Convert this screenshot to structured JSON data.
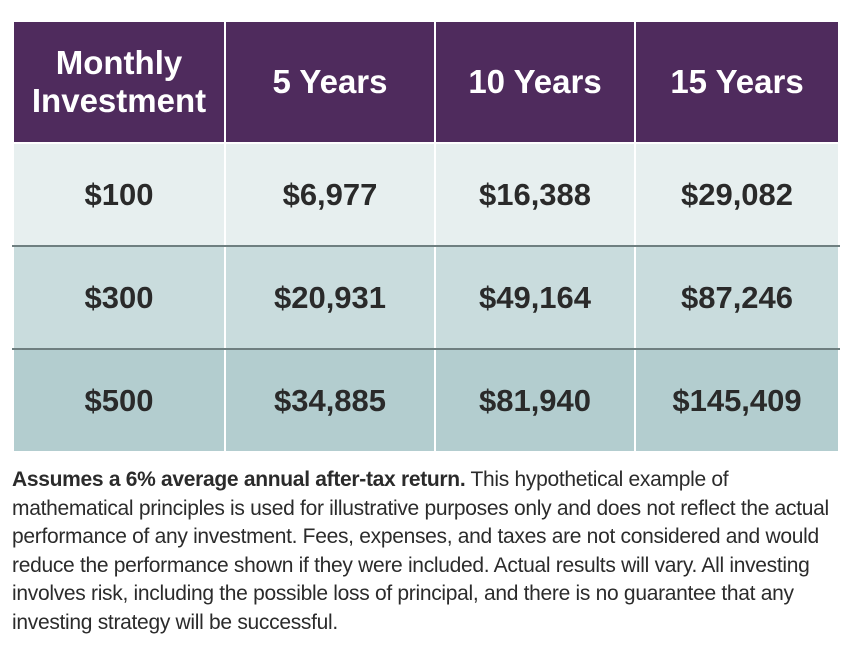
{
  "chart_data": {
    "type": "table",
    "columns": [
      "Monthly Investment",
      "5 Years",
      "10 Years",
      "15 Years"
    ],
    "rows": [
      [
        "$100",
        "$6,977",
        "$16,388",
        "$29,082"
      ],
      [
        "$300",
        "$20,931",
        "$49,164",
        "$87,246"
      ],
      [
        "$500",
        "$34,885",
        "$81,940",
        "$145,409"
      ]
    ]
  },
  "disclaimer": {
    "lead": "Assumes a 6% average annual after-tax return.",
    "body": " This hypothetical example of mathematical principles is used for illustrative purposes only and does not reflect the actual performance of any investment. Fees, expenses, and taxes are not considered and would reduce the performance shown if they were included. Actual results will vary. All investing involves risk, including the possible loss of principal, and there is no guarantee that any investing strategy will be successful."
  },
  "colors": {
    "header_bg": "#4f2b5d",
    "header_text": "#ffffff",
    "row_1_bg": "#e7efef",
    "row_2_bg": "#c9dcdd",
    "row_3_bg": "#b3cdcf",
    "cell_text": "#2a2a2a"
  }
}
